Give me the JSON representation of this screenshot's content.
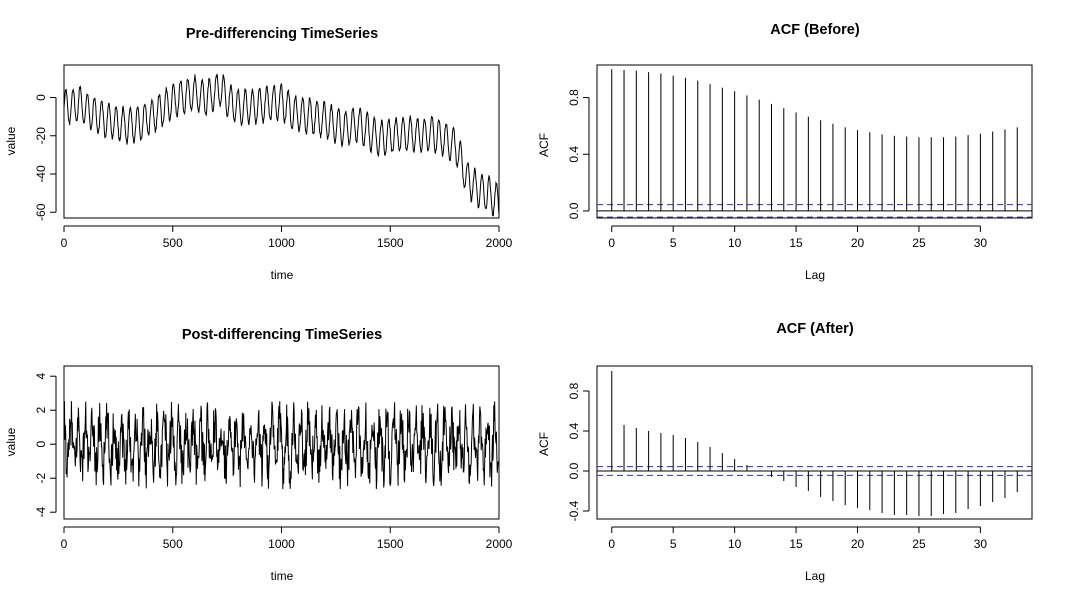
{
  "chart_data": [
    {
      "id": "ts_before",
      "type": "line",
      "title": "Pre-differencing TimeSeries",
      "xlabel": "time",
      "ylabel": "value",
      "xlim": [
        0,
        2000
      ],
      "ylim": [
        -63,
        17
      ],
      "xticks": [
        0,
        500,
        1000,
        1500,
        2000
      ],
      "yticks": [
        -60,
        -40,
        -20,
        0
      ],
      "series": [
        {
          "color": "#000000",
          "trend_x": [
            0,
            25,
            50,
            75,
            100,
            140,
            200,
            260,
            300,
            340,
            400,
            440,
            500,
            560,
            600,
            650,
            700,
            720,
            760,
            800,
            850,
            900,
            950,
            1000,
            1050,
            1100,
            1150,
            1200,
            1260,
            1300,
            1350,
            1400,
            1450,
            1500,
            1550,
            1600,
            1650,
            1700,
            1750,
            1800,
            1850,
            1900,
            1950,
            2000
          ],
          "trend_y": [
            -5,
            -5,
            -4,
            -3,
            -6,
            -9,
            -12,
            -14,
            -15,
            -14,
            -10,
            -7,
            -2,
            1,
            2,
            0,
            3,
            5,
            -2,
            -5,
            -5,
            -4,
            -3,
            -2,
            -8,
            -9,
            -10,
            -12,
            -15,
            -16,
            -14,
            -18,
            -22,
            -20,
            -19,
            -19,
            -20,
            -19,
            -22,
            -25,
            -42,
            -48,
            -50,
            -55
          ],
          "amplitude": 9,
          "period": 33,
          "n": 2000
        }
      ]
    },
    {
      "id": "acf_before",
      "type": "bar",
      "title": "ACF (Before)",
      "xlabel": "Lag",
      "ylabel": "ACF",
      "xlim": [
        -1.2,
        34.2
      ],
      "ylim": [
        -0.05,
        1.03
      ],
      "xticks": [
        0,
        5,
        10,
        15,
        20,
        25,
        30
      ],
      "yticks": [
        0.0,
        0.4,
        0.8
      ],
      "ytick_labels": [
        "0.0",
        "0.4",
        "0.8"
      ],
      "ci": 0.044,
      "ci_color": "#2b2bd4",
      "lags": [
        0,
        1,
        2,
        3,
        4,
        5,
        6,
        7,
        8,
        9,
        10,
        11,
        12,
        13,
        14,
        15,
        16,
        17,
        18,
        19,
        20,
        21,
        22,
        23,
        24,
        25,
        26,
        27,
        28,
        29,
        30,
        31,
        32,
        33
      ],
      "values": [
        1.0,
        0.995,
        0.99,
        0.98,
        0.97,
        0.955,
        0.94,
        0.92,
        0.895,
        0.87,
        0.845,
        0.815,
        0.785,
        0.755,
        0.725,
        0.695,
        0.665,
        0.64,
        0.615,
        0.59,
        0.57,
        0.555,
        0.54,
        0.53,
        0.525,
        0.52,
        0.52,
        0.52,
        0.525,
        0.535,
        0.545,
        0.56,
        0.575,
        0.59
      ]
    },
    {
      "id": "ts_after",
      "type": "line",
      "title": "Post-differencing TimeSeries",
      "xlabel": "time",
      "ylabel": "value",
      "xlim": [
        0,
        2000
      ],
      "ylim": [
        -4.4,
        4.6
      ],
      "xticks": [
        0,
        500,
        1000,
        1500,
        2000
      ],
      "yticks": [
        -4,
        -2,
        0,
        2,
        4
      ],
      "series": [
        {
          "color": "#000000",
          "amplitude": 1.3,
          "period": 33,
          "noise": 0.8,
          "n": 2000
        }
      ]
    },
    {
      "id": "acf_after",
      "type": "bar",
      "title": "ACF (After)",
      "xlabel": "Lag",
      "ylabel": "ACF",
      "xlim": [
        -1.2,
        34.2
      ],
      "ylim": [
        -0.48,
        1.05
      ],
      "xticks": [
        0,
        5,
        10,
        15,
        20,
        25,
        30
      ],
      "yticks": [
        -0.4,
        0.0,
        0.4,
        0.8
      ],
      "ytick_labels": [
        "-0.4",
        "0.0",
        "0.4",
        "0.8"
      ],
      "ci": 0.044,
      "ci_color": "#2b2bd4",
      "lags": [
        0,
        1,
        2,
        3,
        4,
        5,
        6,
        7,
        8,
        9,
        10,
        11,
        12,
        13,
        14,
        15,
        16,
        17,
        18,
        19,
        20,
        21,
        22,
        23,
        24,
        25,
        26,
        27,
        28,
        29,
        30,
        31,
        32,
        33
      ],
      "values": [
        1.0,
        0.46,
        0.43,
        0.4,
        0.38,
        0.36,
        0.33,
        0.29,
        0.24,
        0.18,
        0.12,
        0.06,
        0.0,
        -0.06,
        -0.1,
        -0.16,
        -0.2,
        -0.26,
        -0.3,
        -0.34,
        -0.37,
        -0.39,
        -0.42,
        -0.44,
        -0.44,
        -0.45,
        -0.45,
        -0.43,
        -0.42,
        -0.38,
        -0.35,
        -0.31,
        -0.27,
        -0.21
      ]
    }
  ]
}
